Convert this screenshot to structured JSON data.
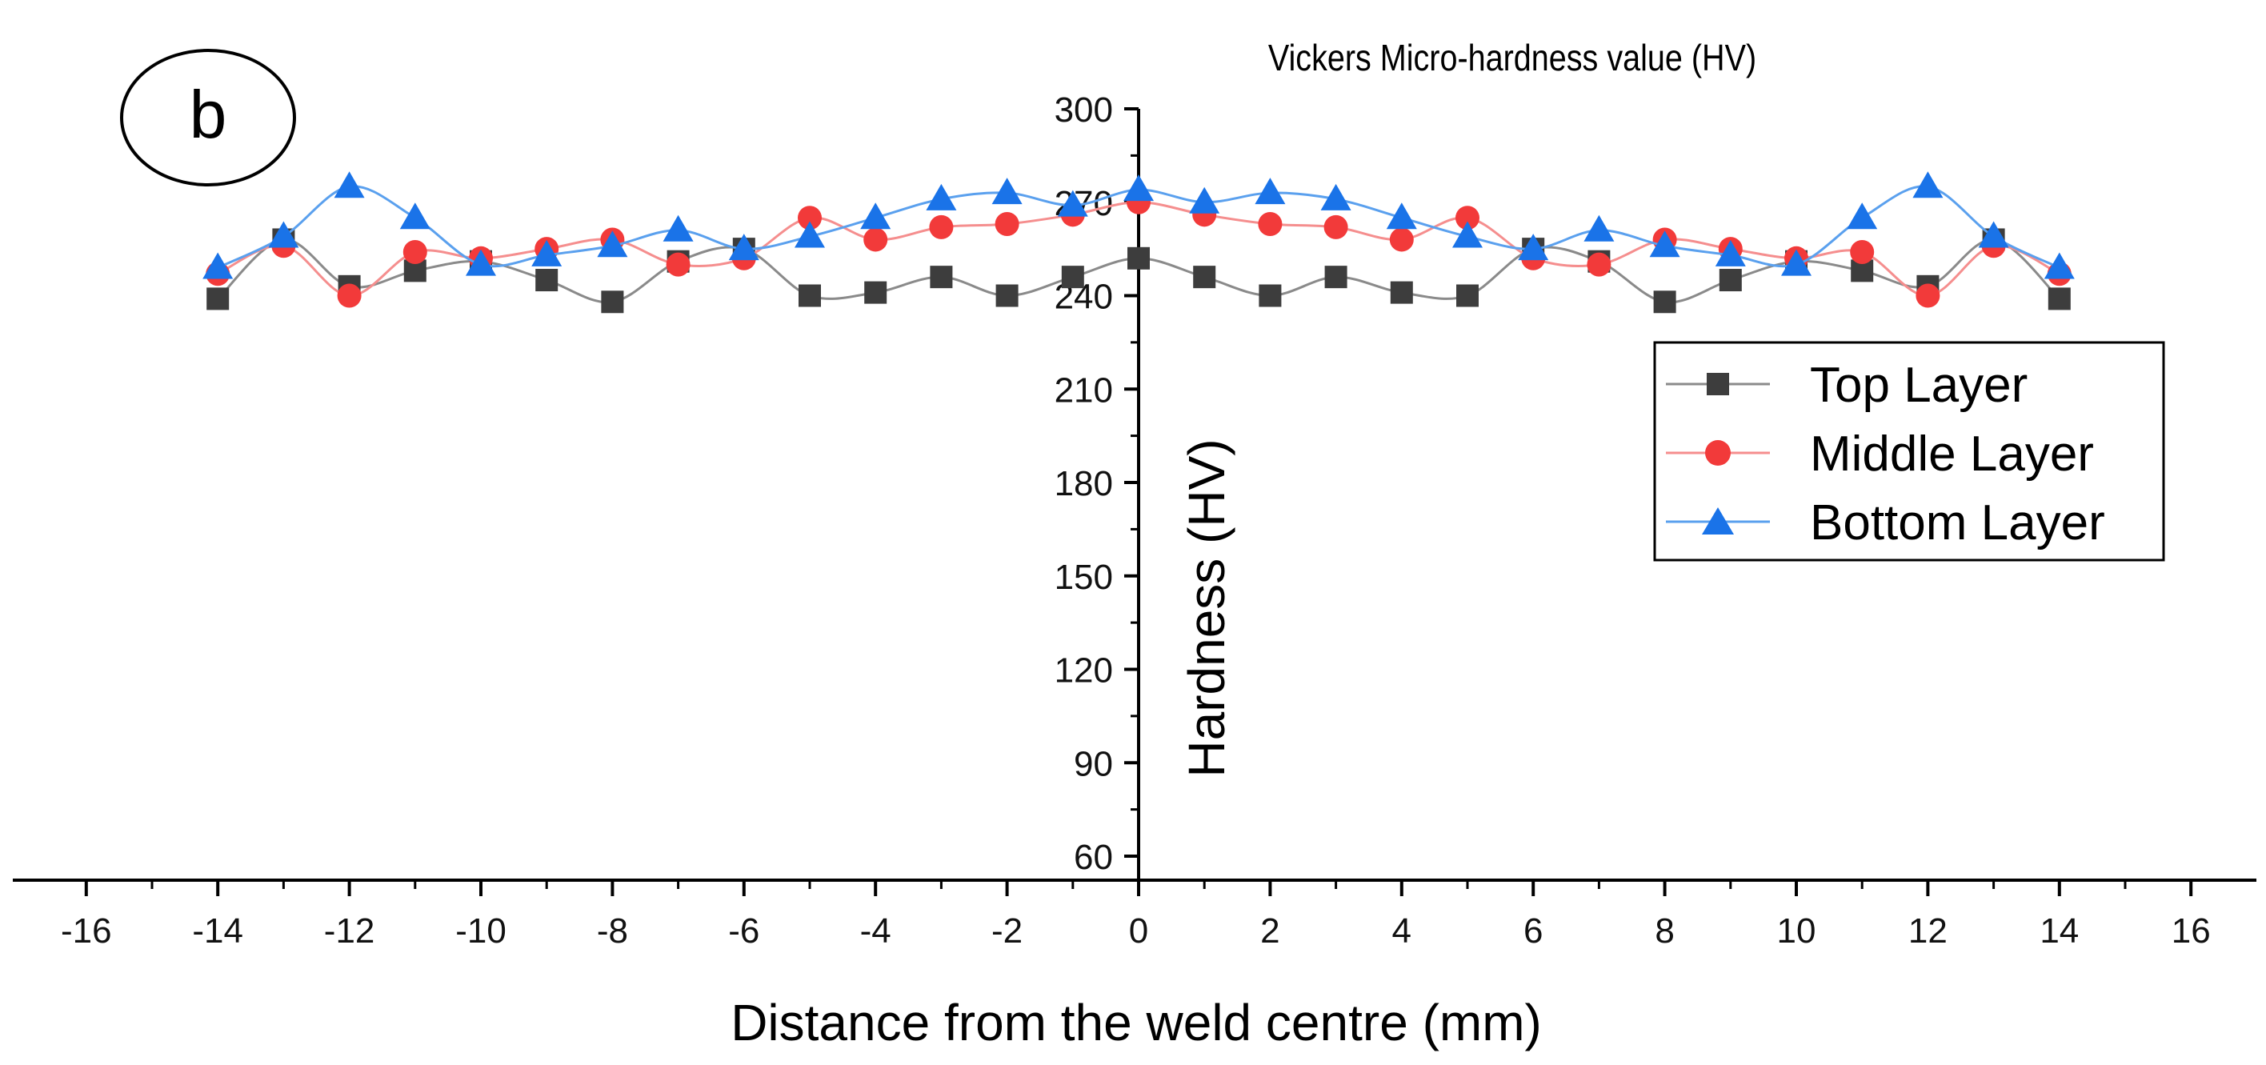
{
  "chart_data": {
    "type": "line",
    "panel_label": "b",
    "title": "Vickers Micro-hardness value (HV)",
    "xlabel": "Distance from the weld centre (mm)",
    "ylabel": "Hardness (HV)",
    "xlim": [
      -16,
      16
    ],
    "ylim": [
      50,
      300
    ],
    "xticks": [
      -16,
      -14,
      -12,
      -10,
      -8,
      -6,
      -4,
      -2,
      0,
      2,
      4,
      6,
      8,
      10,
      12,
      14,
      16
    ],
    "yticks": [
      60,
      90,
      120,
      150,
      180,
      210,
      240,
      270,
      300
    ],
    "legend_position": "right",
    "x": [
      -14,
      -13,
      -12,
      -11,
      -10,
      -9,
      -8,
      -7,
      -6,
      -5,
      -4,
      -3,
      -2,
      -1,
      0,
      1,
      2,
      3,
      4,
      5,
      6,
      7,
      8,
      9,
      10,
      11,
      12,
      13,
      14
    ],
    "series": [
      {
        "name": "Top Layer",
        "marker": "square",
        "color": "#3d3d3d",
        "line_color": "#8a8a8a",
        "values": [
          239,
          258,
          243,
          248,
          251,
          245,
          238,
          251,
          255,
          240,
          241,
          246,
          240,
          246,
          252,
          246,
          240,
          246,
          241,
          240,
          255,
          251,
          238,
          245,
          251,
          248,
          243,
          258,
          239
        ]
      },
      {
        "name": "Middle Layer",
        "marker": "circle",
        "color": "#f23a3a",
        "line_color": "#f58e8e",
        "values": [
          247,
          256,
          240,
          254,
          252,
          255,
          258,
          250,
          252,
          265,
          258,
          262,
          263,
          266,
          270,
          266,
          263,
          262,
          258,
          265,
          252,
          250,
          258,
          255,
          252,
          254,
          240,
          256,
          247
        ]
      },
      {
        "name": "Bottom Layer",
        "marker": "triangle",
        "color": "#1a73e8",
        "line_color": "#5aa0ee",
        "values": [
          249,
          259,
          275,
          265,
          250,
          253,
          256,
          261,
          255,
          259,
          265,
          271,
          273,
          269,
          274,
          270,
          273,
          271,
          265,
          259,
          255,
          261,
          256,
          253,
          250,
          265,
          275,
          259,
          249
        ]
      }
    ]
  }
}
